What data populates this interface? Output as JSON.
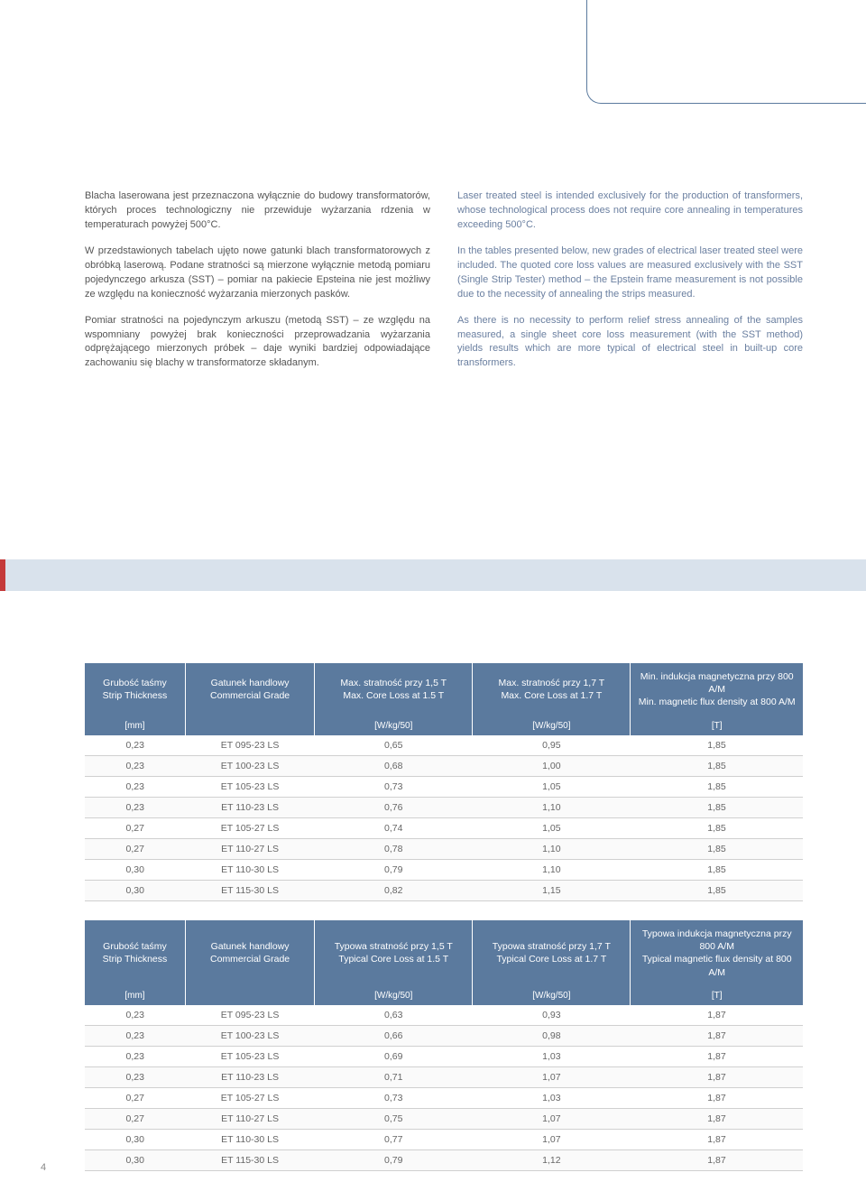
{
  "text_left": {
    "p1": "Blacha laserowana jest przeznaczona wyłącznie do budowy transformatorów, których proces technologiczny nie przewiduje wyżarzania rdzenia w temperaturach powyżej 500°C.",
    "p2": "W przedstawionych tabelach ujęto nowe gatunki blach transformatorowych z obróbką laserową. Podane stratności są mierzone wyłącznie metodą pomiaru pojedynczego arkusza (SST) – pomiar na pakiecie Epsteina nie jest możliwy ze względu na konieczność wyżarzania mierzonych pasków.",
    "p3": "Pomiar stratności na pojedynczym arkuszu (metodą SST) – ze względu na wspomniany powyżej brak konieczności przeprowadzania wyżarzania odprężającego mierzonych próbek – daje wyniki bardziej odpowiadające zachowaniu się blachy w transformatorze składanym."
  },
  "text_right": {
    "p1": "Laser treated steel is intended exclusively for the production of transformers, whose technological process does not require core annealing in temperatures exceeding 500°C.",
    "p2": "In the tables presented below, new grades of electrical laser treated steel were included. The quoted core loss values are measured exclusively with the SST (Single Strip Tester) method – the Epstein frame measurement is not possible due to the necessity of annealing the strips measured.",
    "p3": "As there is no necessity to perform relief stress annealing of the samples measured, a single sheet core loss measurement (with the SST method) yields results which are more typical of electrical steel in built-up core transformers."
  },
  "table1": {
    "headers": {
      "c0a": "Grubość taśmy",
      "c0b": "Strip Thickness",
      "c1a": "Gatunek handlowy",
      "c1b": "Commercial Grade",
      "c2a": "Max. stratność przy 1,5 T",
      "c2b": "Max. Core Loss at 1.5 T",
      "c3a": "Max. stratność przy 1,7 T",
      "c3b": "Max. Core Loss at 1.7 T",
      "c4a": "Min. indukcja magnetyczna przy 800 A/M",
      "c4b": "Min. magnetic flux density at 800 A/M"
    },
    "units": {
      "u0": "[mm]",
      "u1": "",
      "u2": "[W/kg/50]",
      "u3": "[W/kg/50]",
      "u4": "[T]"
    },
    "rows": [
      [
        "0,23",
        "ET 095-23 LS",
        "0,65",
        "0,95",
        "1,85"
      ],
      [
        "0,23",
        "ET 100-23 LS",
        "0,68",
        "1,00",
        "1,85"
      ],
      [
        "0,23",
        "ET 105-23 LS",
        "0,73",
        "1,05",
        "1,85"
      ],
      [
        "0,23",
        "ET 110-23 LS",
        "0,76",
        "1,10",
        "1,85"
      ],
      [
        "0,27",
        "ET 105-27 LS",
        "0,74",
        "1,05",
        "1,85"
      ],
      [
        "0,27",
        "ET 110-27 LS",
        "0,78",
        "1,10",
        "1,85"
      ],
      [
        "0,30",
        "ET 110-30 LS",
        "0,79",
        "1,10",
        "1,85"
      ],
      [
        "0,30",
        "ET 115-30 LS",
        "0,82",
        "1,15",
        "1,85"
      ]
    ]
  },
  "table2": {
    "headers": {
      "c0a": "Grubość taśmy",
      "c0b": "Strip Thickness",
      "c1a": "Gatunek handlowy",
      "c1b": "Commercial Grade",
      "c2a": "Typowa stratność przy 1,5 T",
      "c2b": "Typical Core Loss at 1.5 T",
      "c3a": "Typowa stratność przy 1,7 T",
      "c3b": "Typical Core Loss at 1.7 T",
      "c4a": "Typowa indukcja magnetyczna przy 800 A/M",
      "c4b": "Typical magnetic flux density at 800 A/M"
    },
    "units": {
      "u0": "[mm]",
      "u1": "",
      "u2": "[W/kg/50]",
      "u3": "[W/kg/50]",
      "u4": "[T]"
    },
    "rows": [
      [
        "0,23",
        "ET 095-23 LS",
        "0,63",
        "0,93",
        "1,87"
      ],
      [
        "0,23",
        "ET 100-23 LS",
        "0,66",
        "0,98",
        "1,87"
      ],
      [
        "0,23",
        "ET 105-23 LS",
        "0,69",
        "1,03",
        "1,87"
      ],
      [
        "0,23",
        "ET 110-23 LS",
        "0,71",
        "1,07",
        "1,87"
      ],
      [
        "0,27",
        "ET 105-27 LS",
        "0,73",
        "1,03",
        "1,87"
      ],
      [
        "0,27",
        "ET 110-27 LS",
        "0,75",
        "1,07",
        "1,87"
      ],
      [
        "0,30",
        "ET 110-30 LS",
        "0,77",
        "1,07",
        "1,87"
      ],
      [
        "0,30",
        "ET 115-30 LS",
        "0,79",
        "1,12",
        "1,87"
      ]
    ]
  },
  "page_number": "4",
  "colors": {
    "header_bg": "#5b7a9e",
    "band_bg": "#d9e2ec",
    "red_accent": "#c43a3a",
    "text_right": "#6a7fa0"
  }
}
